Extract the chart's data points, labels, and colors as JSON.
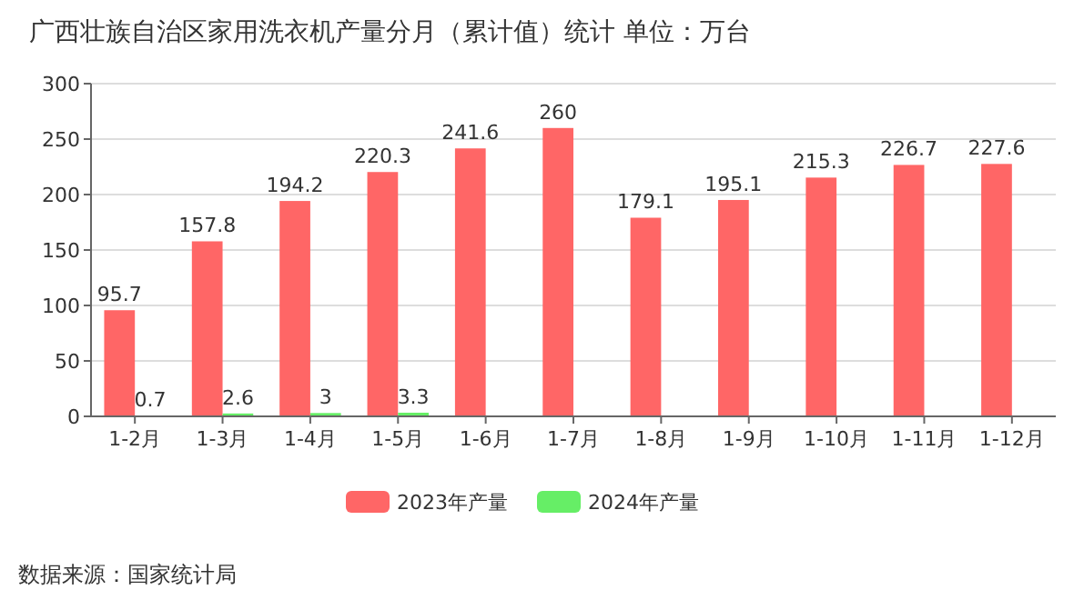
{
  "chart_data": {
    "type": "bar",
    "title": "广西壮族自治区家用洗衣机产量分月（累计值）统计  单位：万台",
    "categories": [
      "1-2月",
      "1-3月",
      "1-4月",
      "1-5月",
      "1-6月",
      "1-7月",
      "1-8月",
      "1-9月",
      "1-10月",
      "1-11月",
      "1-12月"
    ],
    "series": [
      {
        "name": "2023年产量",
        "color": "#ff6666",
        "values": [
          95.7,
          157.8,
          194.2,
          220.3,
          241.6,
          260,
          179.1,
          195.1,
          215.3,
          226.7,
          227.6
        ]
      },
      {
        "name": "2024年产量",
        "color": "#66ee66",
        "values": [
          0.7,
          2.6,
          3,
          3.3,
          null,
          null,
          null,
          null,
          null,
          null,
          null
        ]
      }
    ],
    "ylim": [
      0,
      300
    ],
    "yticks": [
      0,
      50,
      100,
      150,
      200,
      250,
      300
    ],
    "grid": "y",
    "legend": "bottom",
    "data_labels": true,
    "annotations": [
      "数据来源：国家统计局"
    ]
  }
}
